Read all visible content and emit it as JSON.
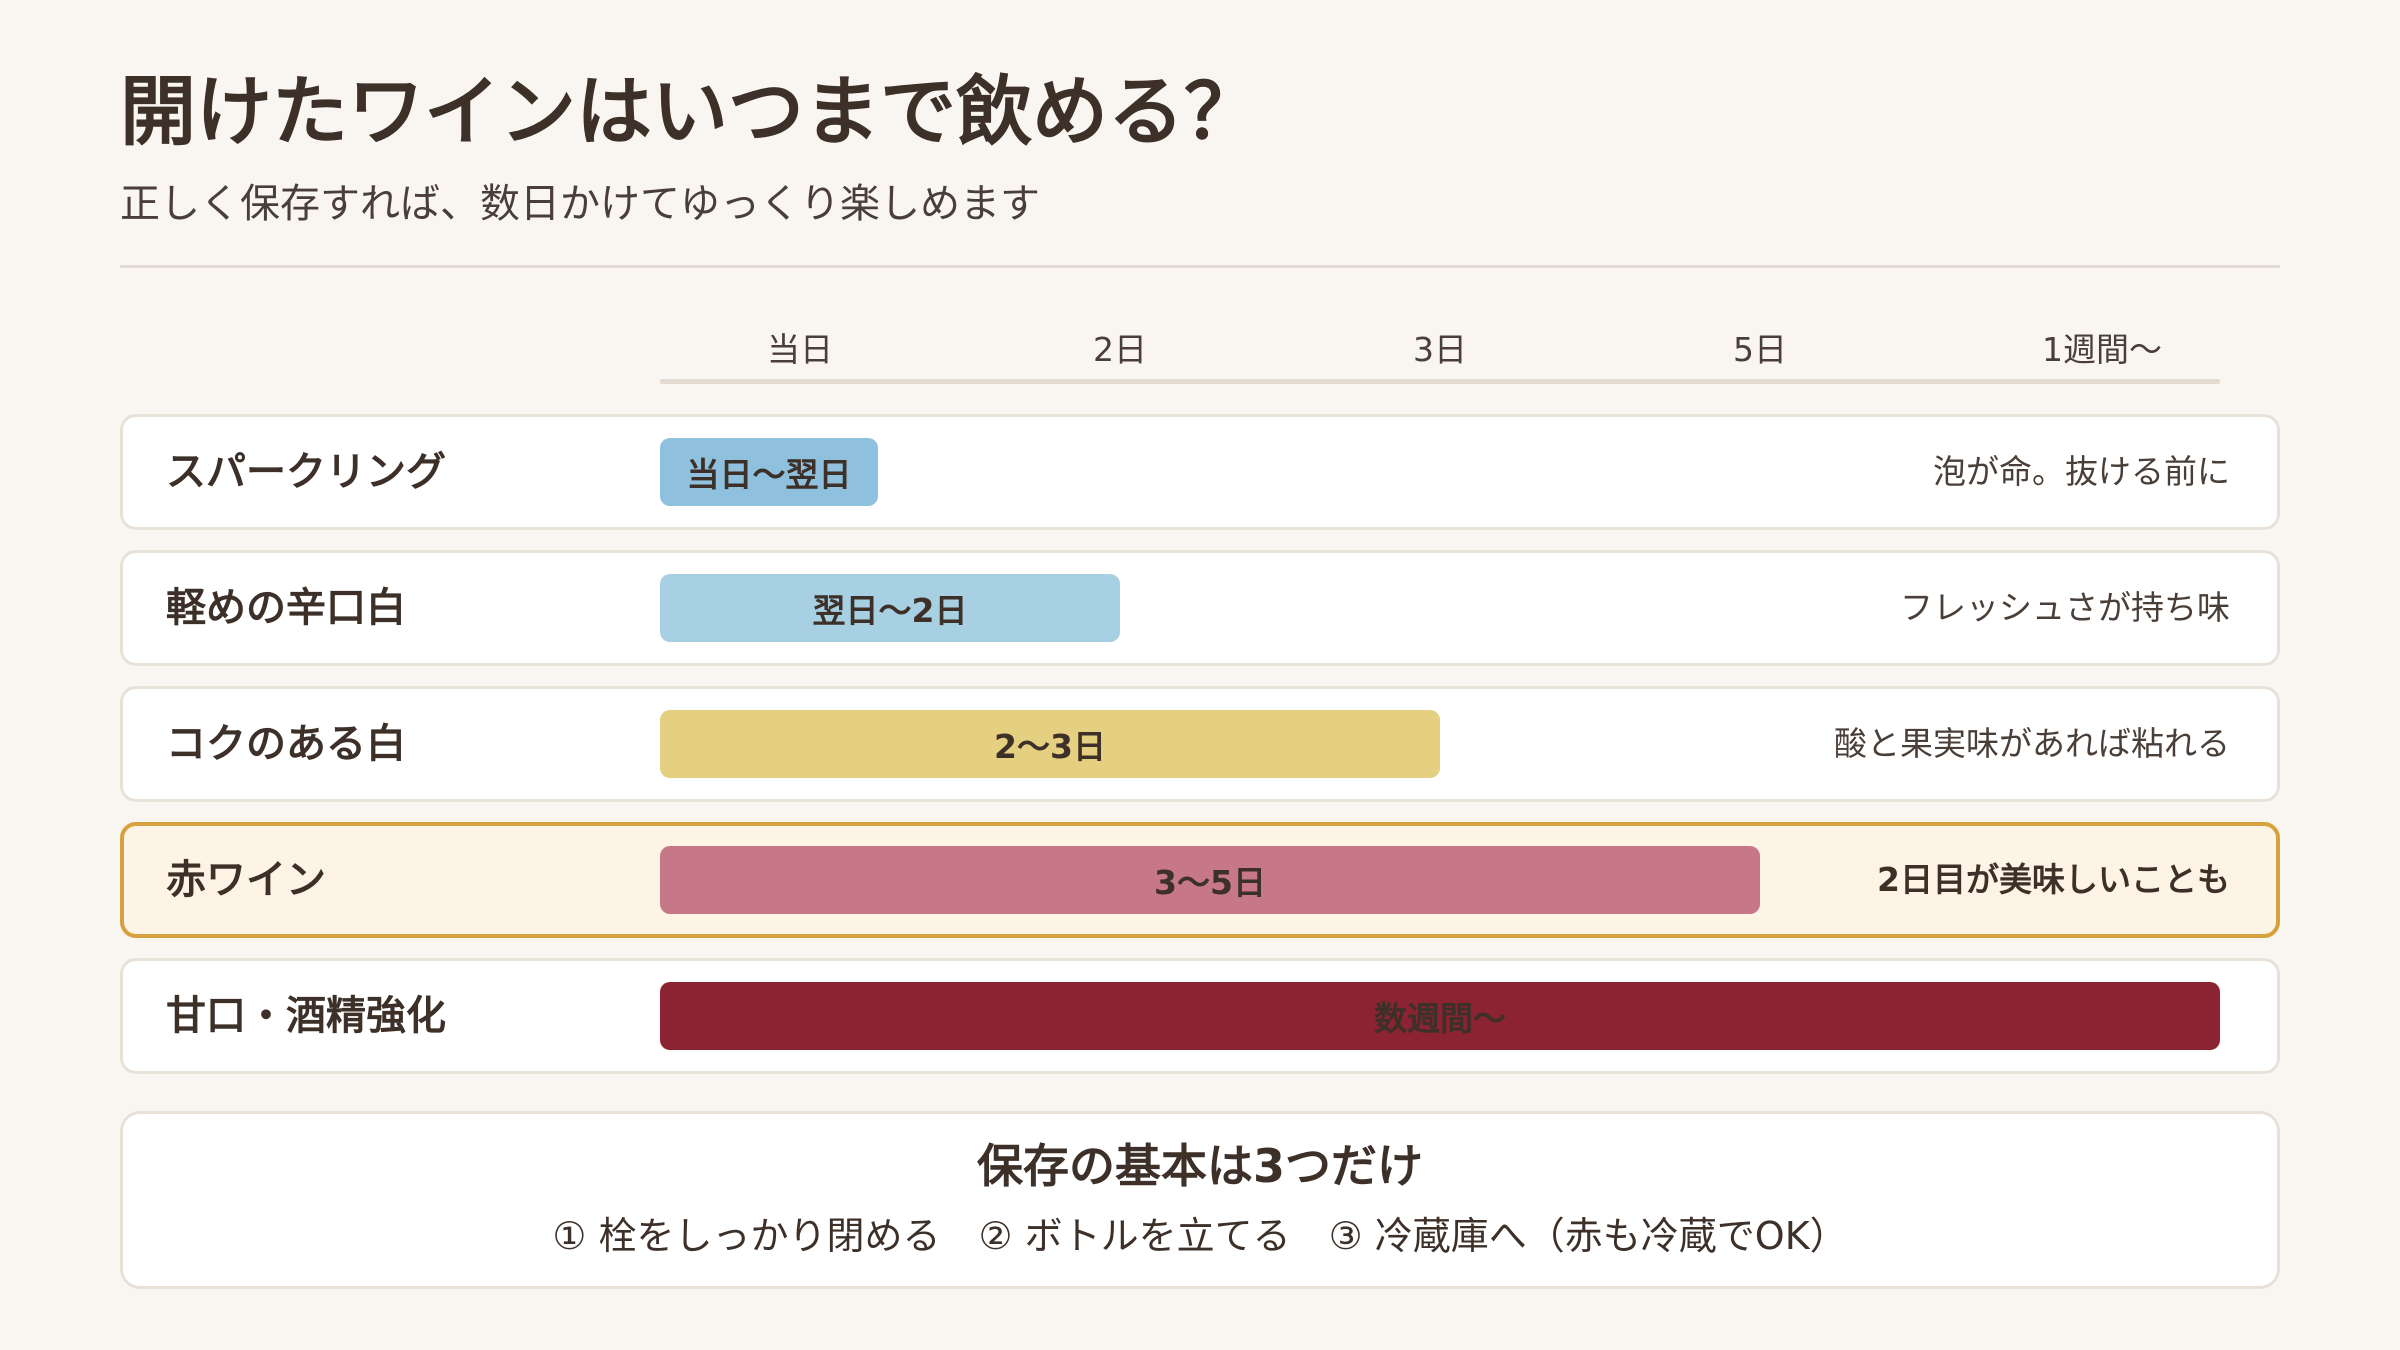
{
  "title": "開けたワインはいつまで飲める？",
  "subtitle": "正しく保存すれば、数日かけてゆっくり楽しめます",
  "chart_data": {
    "type": "bar",
    "orientation": "horizontal",
    "x_ticks": [
      "当日",
      "2日",
      "3日",
      "5日",
      "1週間〜"
    ],
    "categories": [
      "スパークリング",
      "軽めの辛口白",
      "コクのある白",
      "赤ワイン",
      "甘口・酒精強化"
    ],
    "values": [
      0.7,
      1.5,
      2.5,
      3.5,
      5
    ],
    "bar_labels": [
      "当日〜翌日",
      "翌日〜2日",
      "2〜3日",
      "3〜5日",
      "数週間〜"
    ],
    "notes": [
      "泡が命。抜ける前に",
      "フレッシュさが持ち味",
      "酸と果実味があれば粘れる",
      "2日目が美味しいことも",
      ""
    ],
    "colors": [
      "#8fc1de",
      "#a8d0e3",
      "#e5cf80",
      "#c67889",
      "#8b2332"
    ],
    "highlight_index": 3
  },
  "tips": {
    "title": "保存の基本は3つだけ",
    "text": "① 栓をしっかり閉める　② ボトルを立てる　③ 冷蔵庫へ（赤も冷蔵でOK）"
  }
}
